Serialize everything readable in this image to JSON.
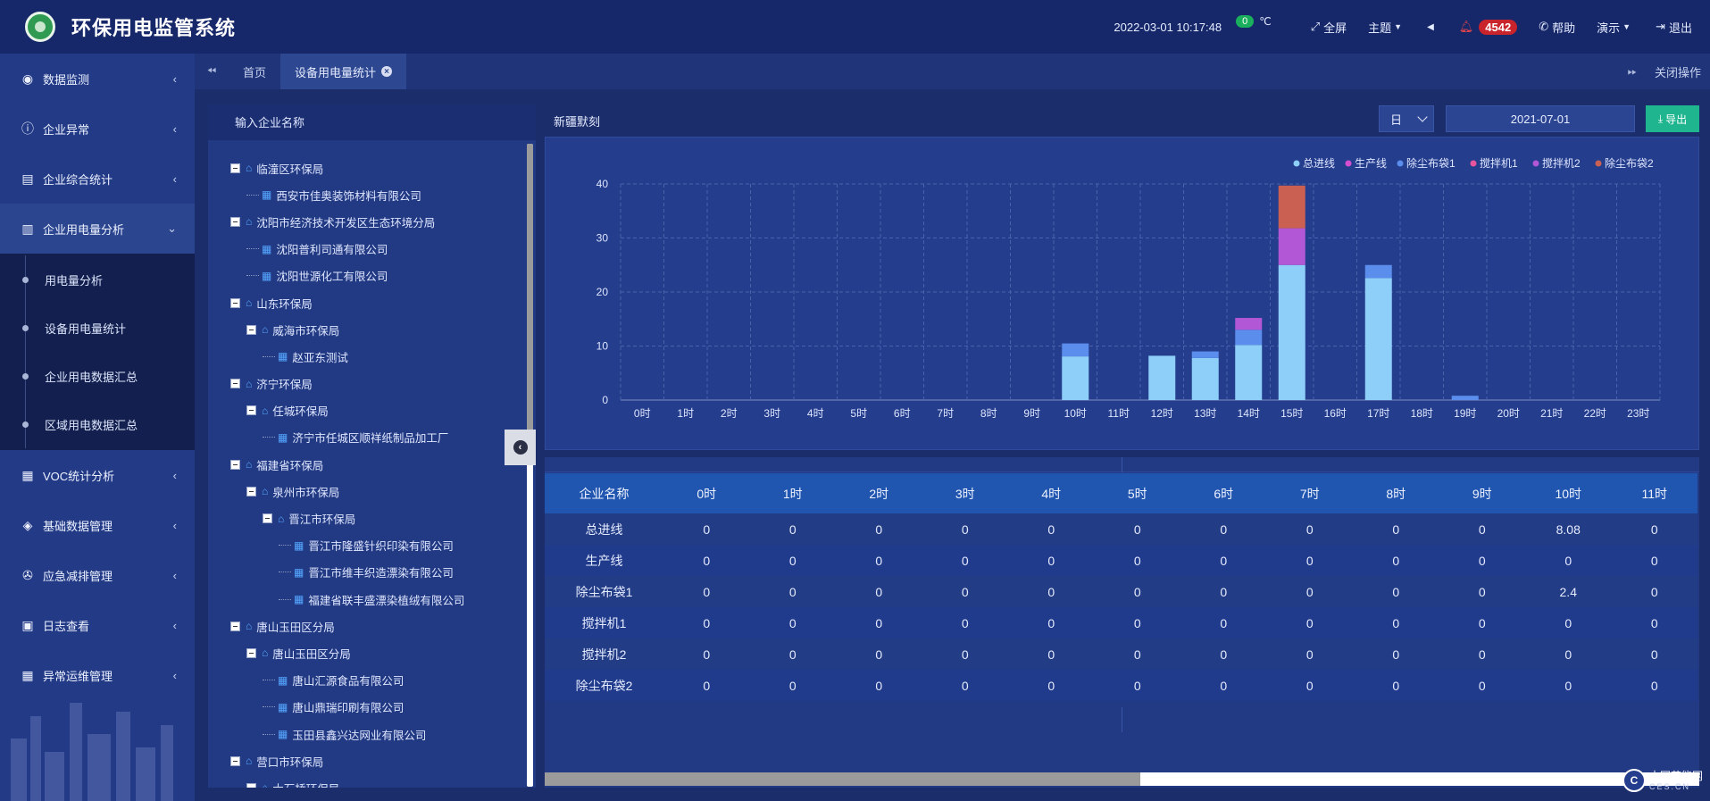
{
  "app": {
    "title": "环保用电监管系统"
  },
  "header": {
    "datetime": "2022-03-01  10:17:48",
    "temperature": "0",
    "temp_unit": "℃",
    "fullscreen": "全屏",
    "theme": "主题",
    "alert_count": "4542",
    "help": "帮助",
    "demo": "演示",
    "logout": "退出"
  },
  "sidebar": {
    "items": [
      {
        "label": "数据监测",
        "icon": "dashboard-icon"
      },
      {
        "label": "企业异常",
        "icon": "warning-icon"
      },
      {
        "label": "企业综合统计",
        "icon": "stats-icon"
      },
      {
        "label": "企业用电量分析",
        "icon": "bar-chart-icon",
        "open": true
      }
    ],
    "submenu": [
      {
        "label": "用电量分析"
      },
      {
        "label": "设备用电量统计"
      },
      {
        "label": "企业用电数据汇总"
      },
      {
        "label": "区域用电数据汇总"
      }
    ],
    "items_after": [
      {
        "label": "VOC统计分析",
        "icon": "calendar-icon"
      },
      {
        "label": "基础数据管理",
        "icon": "layers-icon"
      },
      {
        "label": "应急减排管理",
        "icon": "megaphone-icon"
      },
      {
        "label": "日志查看",
        "icon": "log-icon"
      },
      {
        "label": "异常运维管理",
        "icon": "calendar-icon"
      }
    ]
  },
  "tabs": {
    "items": [
      {
        "label": "首页"
      },
      {
        "label": "设备用电量统计"
      }
    ],
    "close_ops": "关闭操作"
  },
  "tree": {
    "search_placeholder": "输入企业名称",
    "nodes": [
      {
        "label": "临潼区环保局",
        "level": 0,
        "toggle": true
      },
      {
        "label": "西安市佳奥装饰材料有限公司",
        "level": 1,
        "toggle": false
      },
      {
        "label": "沈阳市经济技术开发区生态环境分局",
        "level": 0,
        "toggle": true
      },
      {
        "label": "沈阳普利司通有限公司",
        "level": 1,
        "toggle": false
      },
      {
        "label": "沈阳世源化工有限公司",
        "level": 1,
        "toggle": false
      },
      {
        "label": "山东环保局",
        "level": 0,
        "toggle": true
      },
      {
        "label": "威海市环保局",
        "level": 1,
        "toggle": true
      },
      {
        "label": "赵亚东测试",
        "level": 2,
        "toggle": false
      },
      {
        "label": "济宁环保局",
        "level": 0,
        "toggle": true
      },
      {
        "label": "任城环保局",
        "level": 1,
        "toggle": true
      },
      {
        "label": "济宁市任城区顺祥纸制品加工厂",
        "level": 2,
        "toggle": false
      },
      {
        "label": "福建省环保局",
        "level": 0,
        "toggle": true
      },
      {
        "label": "泉州市环保局",
        "level": 1,
        "toggle": true
      },
      {
        "label": "晋江市环保局",
        "level": 2,
        "toggle": true
      },
      {
        "label": "晋江市隆盛针织印染有限公司",
        "level": 3,
        "toggle": false
      },
      {
        "label": "晋江市维丰织造漂染有限公司",
        "level": 3,
        "toggle": false
      },
      {
        "label": "福建省联丰盛漂染植绒有限公司",
        "level": 3,
        "toggle": false
      },
      {
        "label": "唐山玉田区分局",
        "level": 0,
        "toggle": true
      },
      {
        "label": "唐山玉田区分局",
        "level": 1,
        "toggle": true
      },
      {
        "label": "唐山汇源食品有限公司",
        "level": 2,
        "toggle": false
      },
      {
        "label": "唐山鼎瑞印刷有限公司",
        "level": 2,
        "toggle": false
      },
      {
        "label": "玉田县鑫兴达网业有限公司",
        "level": 2,
        "toggle": false
      },
      {
        "label": "营口市环保局",
        "level": 0,
        "toggle": true
      },
      {
        "label": "大石桥环保局",
        "level": 1,
        "toggle": true
      }
    ]
  },
  "panel": {
    "region": "新疆默刻",
    "period": "日",
    "date": "2021-07-01",
    "export_label": "导出"
  },
  "chart_data": {
    "type": "bar",
    "stacked": true,
    "categories": [
      "0时",
      "1时",
      "2时",
      "3时",
      "4时",
      "5时",
      "6时",
      "7时",
      "8时",
      "9时",
      "10时",
      "11时",
      "12时",
      "13时",
      "14时",
      "15时",
      "16时",
      "17时",
      "18时",
      "19时",
      "20时",
      "21时",
      "22时",
      "23时"
    ],
    "series": [
      {
        "name": "总进线",
        "color": "#8ecff9",
        "values": [
          0,
          0,
          0,
          0,
          0,
          0,
          0,
          0,
          0,
          0,
          8.08,
          0,
          8.2,
          7.8,
          10.2,
          25,
          0,
          22.6,
          0,
          0,
          0,
          0,
          0,
          0
        ]
      },
      {
        "name": "生产线",
        "color": "#d44fd0",
        "values": [
          0,
          0,
          0,
          0,
          0,
          0,
          0,
          0,
          0,
          0,
          0,
          0,
          0,
          0,
          0,
          0,
          0,
          0,
          0,
          0,
          0,
          0,
          0,
          0
        ]
      },
      {
        "name": "除尘布袋1",
        "color": "#5b8ded",
        "values": [
          0,
          0,
          0,
          0,
          0,
          0,
          0,
          0,
          0,
          0,
          2.4,
          0,
          0,
          1.2,
          2.8,
          0,
          0,
          2.4,
          0,
          0.8,
          0,
          0,
          0,
          0
        ]
      },
      {
        "name": "搅拌机1",
        "color": "#e8559c",
        "values": [
          0,
          0,
          0,
          0,
          0,
          0,
          0,
          0,
          0,
          0,
          0,
          0,
          0,
          0,
          0,
          0,
          0,
          0,
          0,
          0,
          0,
          0,
          0,
          0
        ]
      },
      {
        "name": "搅拌机2",
        "color": "#b257d6",
        "values": [
          0,
          0,
          0,
          0,
          0,
          0,
          0,
          0,
          0,
          0,
          0,
          0,
          0,
          0,
          2.2,
          6.8,
          0,
          0,
          0,
          0,
          0,
          0,
          0,
          0
        ]
      },
      {
        "name": "除尘布袋2",
        "color": "#c96052",
        "values": [
          0,
          0,
          0,
          0,
          0,
          0,
          0,
          0,
          0,
          0,
          0,
          0,
          0,
          0,
          0,
          7.9,
          0,
          0,
          0,
          0,
          0,
          0,
          0,
          0
        ]
      }
    ],
    "ylim": [
      0,
      40
    ],
    "yticks": [
      0,
      10,
      20,
      30,
      40
    ],
    "grid": true,
    "legend": "top-right"
  },
  "table": {
    "headers": [
      "企业名称",
      "0时",
      "1时",
      "2时",
      "3时",
      "4时",
      "5时",
      "6时",
      "7时",
      "8时",
      "9时",
      "10时",
      "11时"
    ],
    "rows": [
      [
        "总进线",
        "0",
        "0",
        "0",
        "0",
        "0",
        "0",
        "0",
        "0",
        "0",
        "0",
        "8.08",
        "0"
      ],
      [
        "生产线",
        "0",
        "0",
        "0",
        "0",
        "0",
        "0",
        "0",
        "0",
        "0",
        "0",
        "0",
        "0"
      ],
      [
        "除尘布袋1",
        "0",
        "0",
        "0",
        "0",
        "0",
        "0",
        "0",
        "0",
        "0",
        "0",
        "2.4",
        "0"
      ],
      [
        "搅拌机1",
        "0",
        "0",
        "0",
        "0",
        "0",
        "0",
        "0",
        "0",
        "0",
        "0",
        "0",
        "0"
      ],
      [
        "搅拌机2",
        "0",
        "0",
        "0",
        "0",
        "0",
        "0",
        "0",
        "0",
        "0",
        "0",
        "0",
        "0"
      ],
      [
        "除尘布袋2",
        "0",
        "0",
        "0",
        "0",
        "0",
        "0",
        "0",
        "0",
        "0",
        "0",
        "0",
        "0"
      ]
    ]
  },
  "watermark": {
    "text": "中国节能网",
    "sub": "CES.CN"
  }
}
